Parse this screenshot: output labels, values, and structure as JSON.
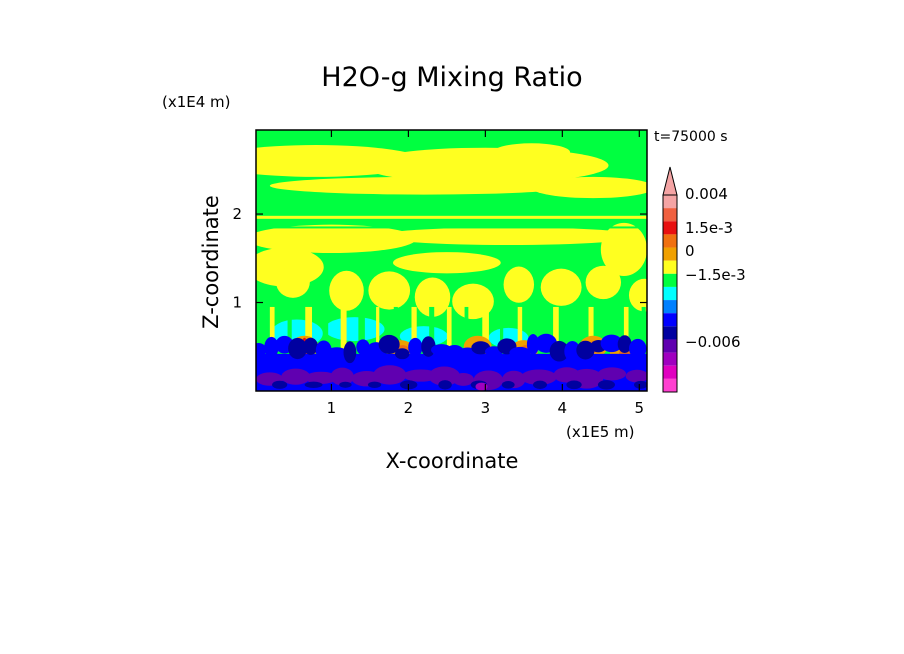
{
  "chart_data": {
    "type": "heatmap",
    "title": "H2O-g Mixing Ratio",
    "xlabel": "X-coordinate",
    "ylabel": "Z-coordinate",
    "x_scale_label": "(x1E5 m)",
    "y_scale_label": "(x1E4 m)",
    "time_label": "t=75000 s",
    "x_ticks": [
      "1",
      "2",
      "3",
      "4",
      "5"
    ],
    "y_ticks": [
      "1",
      "2"
    ],
    "x_tick_values": [
      1,
      2,
      3,
      4,
      5
    ],
    "y_tick_values": [
      1,
      2
    ],
    "xlim": [
      0.02,
      5.1
    ],
    "ylim": [
      0.0,
      2.95
    ],
    "colorbar": {
      "labels": [
        "0.004",
        "1.5e-3",
        "0",
        "−1.5e-3",
        "−0.006"
      ],
      "label_values": [
        0.004,
        0.0015,
        0.0,
        -0.0015,
        -0.006
      ],
      "levels": [
        {
          "color": "#f4a4a4"
        },
        {
          "color": "#f06040"
        },
        {
          "color": "#e81010"
        },
        {
          "color": "#f07010"
        },
        {
          "color": "#f0a000"
        },
        {
          "color": "#ffff20"
        },
        {
          "color": "#00ff40"
        },
        {
          "color": "#00ffff"
        },
        {
          "color": "#0080ff"
        },
        {
          "color": "#0000ff"
        },
        {
          "color": "#0000a0"
        },
        {
          "color": "#6000b0"
        },
        {
          "color": "#a000c0"
        },
        {
          "color": "#e000c0"
        },
        {
          "color": "#ff40d0"
        }
      ]
    },
    "layers_bottom_to_top": [
      {
        "z_range": [
          0.0,
          0.4
        ],
        "colors": [
          "#6000b0",
          "#0000ff",
          "#0000a0",
          "#a000c0"
        ]
      },
      {
        "z_range": [
          0.4,
          0.8
        ],
        "colors": [
          "#00ffff",
          "#00ff40",
          "#f0a000",
          "#f07010",
          "#e81010"
        ]
      },
      {
        "z_range": [
          0.8,
          2.95
        ],
        "colors": [
          "#00ff40",
          "#ffff20"
        ]
      }
    ]
  }
}
